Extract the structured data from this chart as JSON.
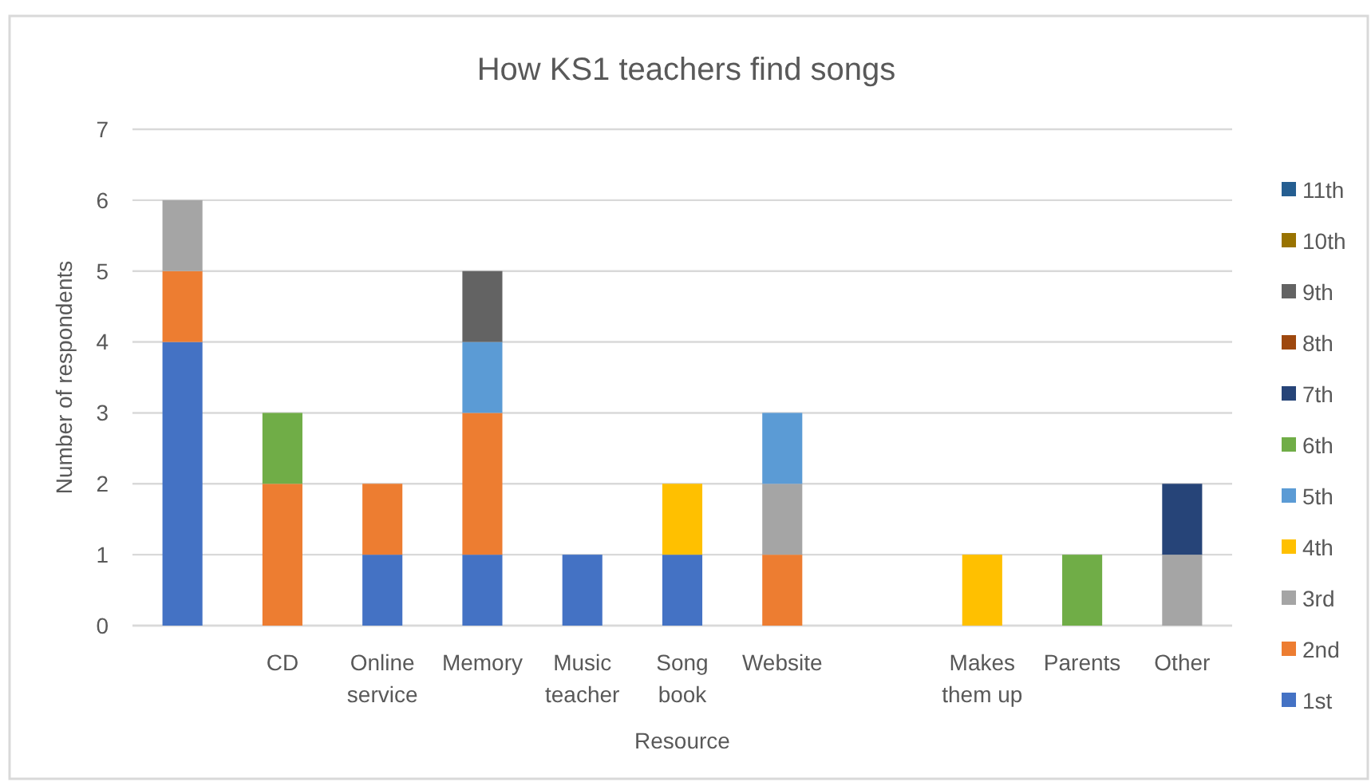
{
  "chart_data": {
    "type": "bar",
    "title": "How KS1 teachers find songs",
    "xlabel": "Resource",
    "ylabel": "Number of respondents",
    "categories": [
      null,
      "CD",
      "Online service",
      "Memory",
      "Music teacher",
      "Song book",
      "Website",
      null,
      "Makes them up",
      "Parents",
      "Other"
    ],
    "stacked": true,
    "ylim": [
      0,
      7
    ],
    "yticks": [
      0,
      1,
      2,
      3,
      4,
      5,
      6,
      7
    ],
    "grid": "y",
    "legend": "right",
    "series": [
      {
        "name": "1st",
        "color": "#4472c4",
        "values": [
          4,
          null,
          1,
          1,
          1,
          1,
          null,
          null,
          null,
          null,
          null
        ]
      },
      {
        "name": "2nd",
        "color": "#ed7d31",
        "values": [
          1,
          2,
          1,
          2,
          null,
          null,
          1,
          null,
          null,
          null,
          null
        ]
      },
      {
        "name": "3rd",
        "color": "#a5a5a5",
        "values": [
          1,
          null,
          null,
          null,
          null,
          null,
          1,
          null,
          null,
          null,
          1
        ]
      },
      {
        "name": "4th",
        "color": "#ffc000",
        "values": [
          null,
          null,
          null,
          null,
          null,
          1,
          null,
          null,
          1,
          null,
          null
        ]
      },
      {
        "name": "5th",
        "color": "#5b9bd5",
        "values": [
          null,
          null,
          null,
          1,
          null,
          null,
          1,
          null,
          null,
          null,
          null
        ]
      },
      {
        "name": "6th",
        "color": "#70ad47",
        "values": [
          null,
          1,
          null,
          null,
          null,
          null,
          null,
          null,
          null,
          1,
          null
        ]
      },
      {
        "name": "7th",
        "color": "#264478",
        "values": [
          null,
          null,
          null,
          null,
          null,
          null,
          null,
          null,
          null,
          null,
          1
        ]
      },
      {
        "name": "8th",
        "color": "#9e480e",
        "values": [
          null,
          null,
          null,
          null,
          null,
          null,
          null,
          null,
          null,
          null,
          null
        ]
      },
      {
        "name": "9th",
        "color": "#636363",
        "values": [
          null,
          null,
          null,
          1,
          null,
          null,
          null,
          null,
          null,
          null,
          null
        ]
      },
      {
        "name": "10th",
        "color": "#997300",
        "values": [
          null,
          null,
          null,
          null,
          null,
          null,
          null,
          null,
          null,
          null,
          null
        ]
      },
      {
        "name": "11th",
        "color": "#255e91",
        "values": [
          null,
          null,
          null,
          null,
          null,
          null,
          null,
          null,
          null,
          null,
          null
        ]
      }
    ]
  }
}
